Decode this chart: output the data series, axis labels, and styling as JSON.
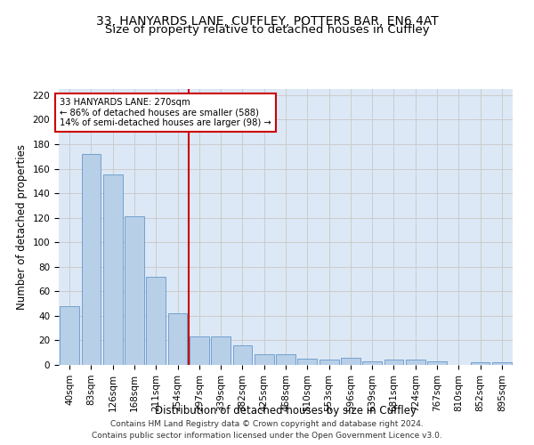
{
  "title_line1": "33, HANYARDS LANE, CUFFLEY, POTTERS BAR, EN6 4AT",
  "title_line2": "Size of property relative to detached houses in Cuffley",
  "xlabel": "Distribution of detached houses by size in Cuffley",
  "ylabel": "Number of detached properties",
  "footer_line1": "Contains HM Land Registry data © Crown copyright and database right 2024.",
  "footer_line2": "Contains public sector information licensed under the Open Government Licence v3.0.",
  "bar_labels": [
    "40sqm",
    "83sqm",
    "126sqm",
    "168sqm",
    "211sqm",
    "254sqm",
    "297sqm",
    "339sqm",
    "382sqm",
    "425sqm",
    "468sqm",
    "510sqm",
    "553sqm",
    "596sqm",
    "639sqm",
    "681sqm",
    "724sqm",
    "767sqm",
    "810sqm",
    "852sqm",
    "895sqm"
  ],
  "bar_values": [
    48,
    172,
    155,
    121,
    72,
    42,
    23,
    23,
    16,
    9,
    9,
    5,
    4,
    6,
    3,
    4,
    4,
    3,
    0,
    2,
    2
  ],
  "bar_color": "#b8cfe8",
  "bar_edge_color": "#6699cc",
  "annotation_line1": "33 HANYARDS LANE: 270sqm",
  "annotation_line2": "← 86% of detached houses are smaller (588)",
  "annotation_line3": "14% of semi-detached houses are larger (98) →",
  "vline_x_index": 5.5,
  "vline_color": "#cc0000",
  "annotation_box_color": "#cc0000",
  "ylim": [
    0,
    225
  ],
  "yticks": [
    0,
    20,
    40,
    60,
    80,
    100,
    120,
    140,
    160,
    180,
    200,
    220
  ],
  "grid_color": "#cccccc",
  "bg_color": "#dce8f5",
  "title_fontsize": 10,
  "subtitle_fontsize": 9.5,
  "ylabel_fontsize": 8.5,
  "xlabel_fontsize": 8.5,
  "tick_fontsize": 7.5,
  "footer_fontsize": 6.5
}
